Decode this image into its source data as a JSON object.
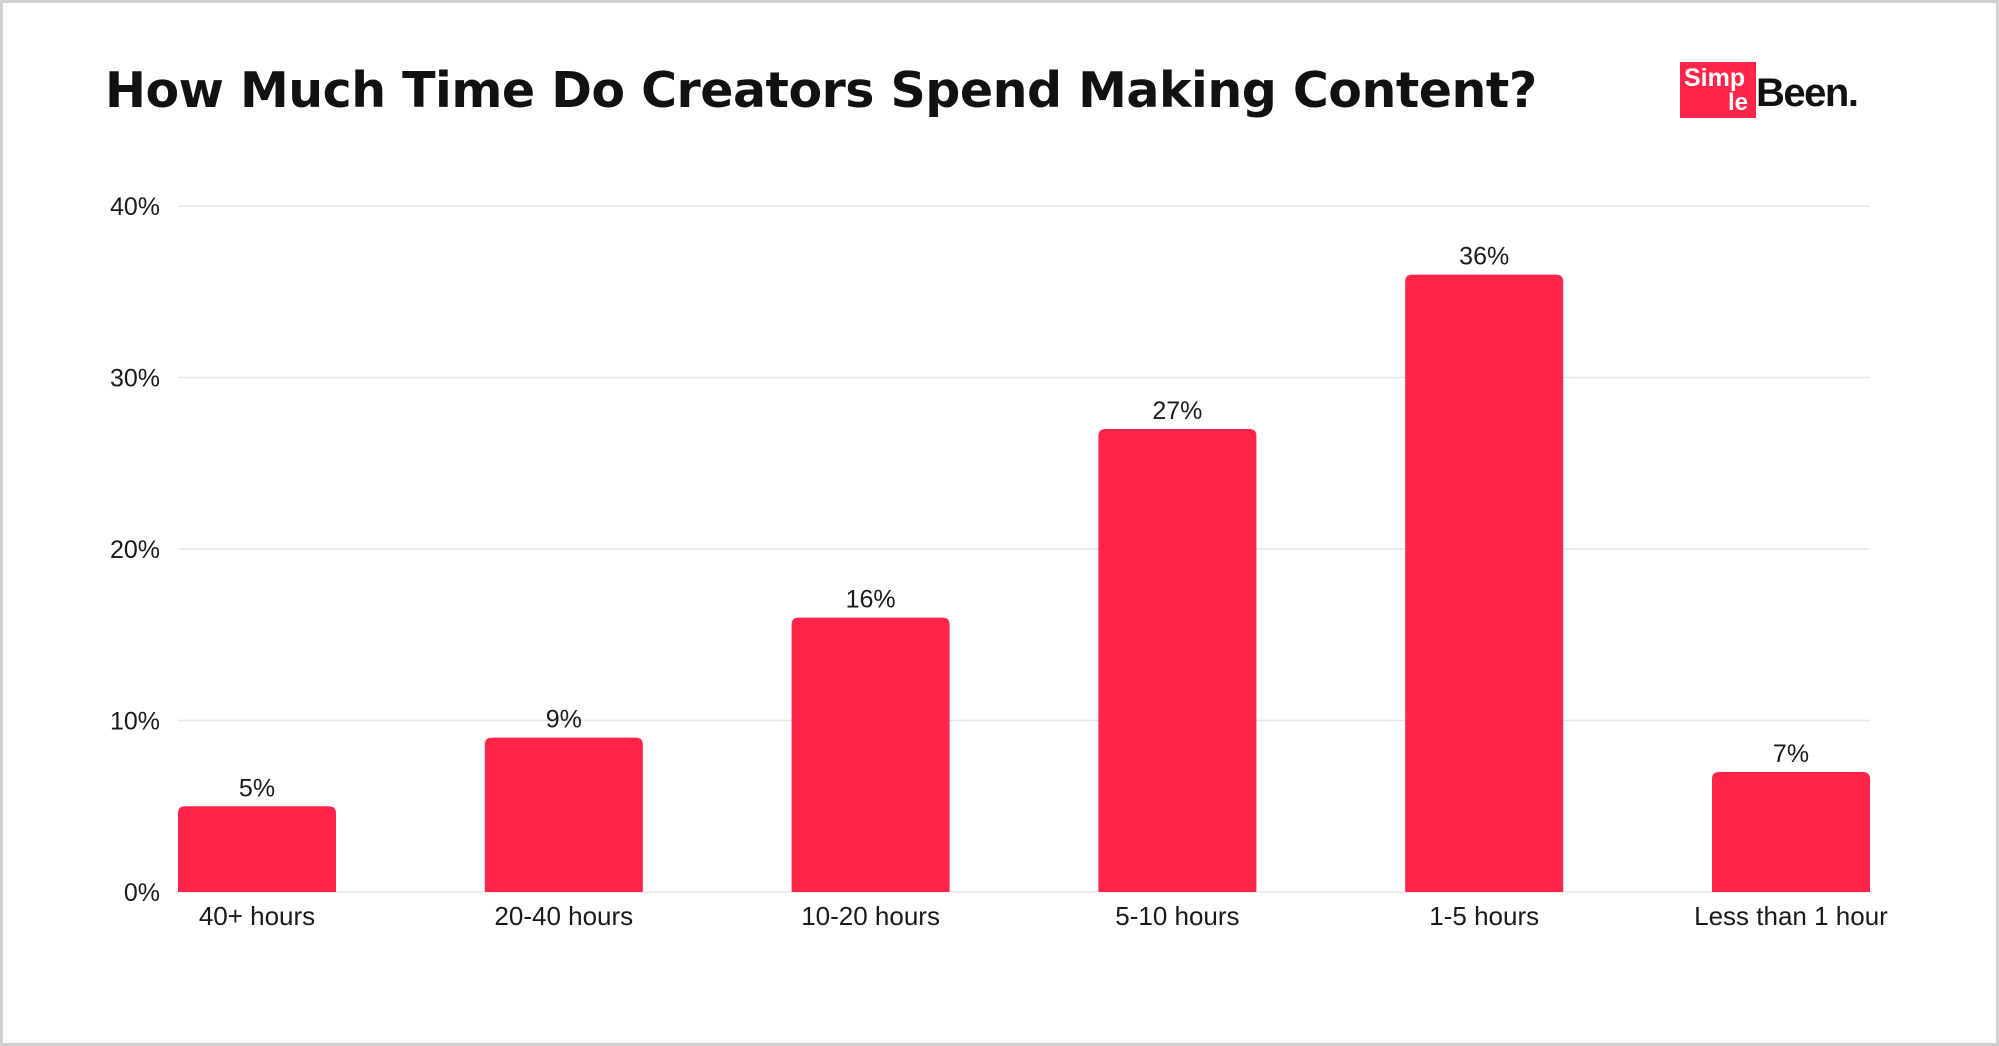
{
  "chart_data": {
    "type": "bar",
    "title": "How Much Time Do Creators Spend Making Content?",
    "categories": [
      "40+ hours",
      "20-40 hours",
      "10-20 hours",
      "5-10 hours",
      "1-5 hours",
      "Less than 1 hour"
    ],
    "values": [
      5,
      9,
      16,
      27,
      36,
      7
    ],
    "value_labels": [
      "5%",
      "9%",
      "16%",
      "27%",
      "36%",
      "7%"
    ],
    "yticks": [
      0,
      10,
      20,
      30,
      40
    ],
    "ytick_labels": [
      "0%",
      "10%",
      "20%",
      "30%",
      "40%"
    ],
    "ylim": [
      0,
      40
    ],
    "xlabel": "",
    "ylabel": "",
    "grid": true,
    "legend": "none",
    "bar_color": "#ff2449",
    "grid_color": "#e6e6e6"
  },
  "brand": {
    "logo_part1": "Simp",
    "logo_part2": "le",
    "logo_part3": "Been.",
    "accent_color": "#ff2449"
  }
}
